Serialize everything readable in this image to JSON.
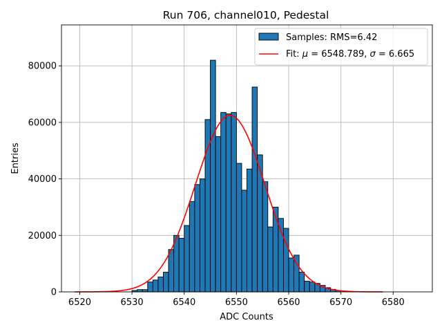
{
  "chart_data": {
    "type": "bar",
    "title": "Run 706, channel010, Pedestal",
    "xlabel": "ADC Counts",
    "ylabel": "Entries",
    "xlim": [
      6516.5,
      6587.5
    ],
    "ylim": [
      0,
      94500
    ],
    "grid": true,
    "legend_position": "top-right",
    "x_ticks": [
      6520,
      6530,
      6540,
      6550,
      6560,
      6570,
      6580
    ],
    "y_ticks": [
      0,
      20000,
      40000,
      60000,
      80000
    ],
    "y_tick_labels": [
      "0",
      "20000",
      "40000",
      "60000",
      "80000"
    ],
    "bin_width": 1,
    "histogram": {
      "name": "Samples: RMS=6.42",
      "color": "#1f77b4",
      "edge_color": "#000000",
      "bins_start": [
        6530,
        6531,
        6532,
        6533,
        6534,
        6535,
        6536,
        6537,
        6538,
        6539,
        6540,
        6541,
        6542,
        6543,
        6544,
        6545,
        6546,
        6547,
        6548,
        6549,
        6550,
        6551,
        6552,
        6553,
        6554,
        6555,
        6556,
        6557,
        6558,
        6559,
        6560,
        6561,
        6562,
        6563,
        6564,
        6565,
        6566,
        6567,
        6568,
        6569
      ],
      "values": [
        500,
        800,
        800,
        3500,
        4200,
        5300,
        7000,
        15000,
        20000,
        19000,
        23500,
        32000,
        38000,
        40000,
        61000,
        82000,
        55000,
        63500,
        63000,
        63500,
        45500,
        36000,
        43500,
        72500,
        48500,
        39000,
        23000,
        30000,
        26000,
        22500,
        12000,
        13000,
        7000,
        3800,
        3500,
        3000,
        2300,
        1500,
        900,
        500
      ]
    },
    "fit": {
      "name": "Fit: μ = 6548.789, σ = 6.665",
      "color": "#ff0000",
      "mu": 6548.789,
      "sigma": 6.665,
      "amplitude": 62500,
      "x_range": [
        6519,
        6578
      ]
    }
  },
  "legend": {
    "samples_label": "Samples: RMS=6.42",
    "fit_prefix": "Fit: ",
    "mu_symbol": "μ",
    "fit_mu_text": " = 6548.789, ",
    "sigma_symbol": "σ",
    "fit_sigma_text": " = 6.665"
  }
}
